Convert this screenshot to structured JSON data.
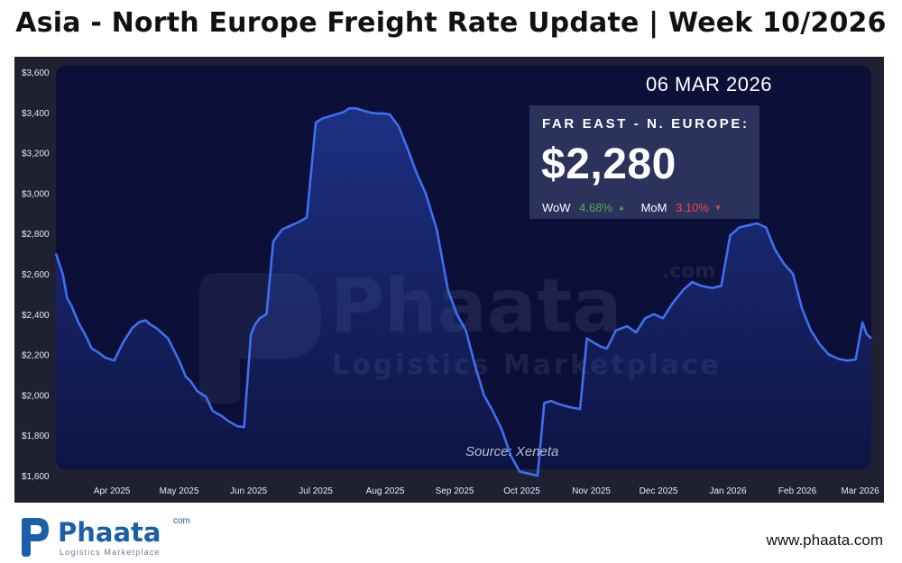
{
  "header": {
    "title": "Asia - North Europe Freight Rate Update | Week 10/2026"
  },
  "panel": {
    "date": "06 MAR 2026",
    "route": "FAR EAST - N. EUROPE:",
    "price": "$2,280",
    "wow_label": "WoW",
    "wow_value": "4.68%",
    "mom_label": "MoM",
    "mom_value": "3.10%",
    "source": "Source: Xeneta"
  },
  "watermark": {
    "name": "Phaata",
    "tagline": "Logistics Marketplace",
    "domain": ".com"
  },
  "footer": {
    "logo_name": "Phaata",
    "logo_domain": "com",
    "logo_tagline": "Logistics Marketplace",
    "website": "www.phaata.com"
  },
  "colors": {
    "line": "#3f6ff0",
    "plot_bg": "#0c0f38",
    "frame_bg": "#1f2133",
    "up": "#4caf50",
    "down": "#f04a4a"
  },
  "chart_data": {
    "type": "area",
    "title": "",
    "xlabel": "",
    "ylabel": "",
    "ylim": [
      1600,
      3600
    ],
    "yticks": [
      1600,
      1800,
      2000,
      2200,
      2400,
      2600,
      2800,
      3000,
      3200,
      3400,
      3600
    ],
    "ytick_labels": [
      "$1,600",
      "$1,800",
      "$2,000",
      "$2,200",
      "$2,400",
      "$2,600",
      "$2,800",
      "$3,000",
      "$3,200",
      "$3,400",
      "$3,600"
    ],
    "xticks": [
      {
        "date": "2025-04-01",
        "label": "Apr 2025"
      },
      {
        "date": "2025-05-01",
        "label": "May 2025"
      },
      {
        "date": "2025-06-01",
        "label": "Jun 2025"
      },
      {
        "date": "2025-07-01",
        "label": "Jul 2025"
      },
      {
        "date": "2025-08-01",
        "label": "Aug 2025"
      },
      {
        "date": "2025-09-01",
        "label": "Sep 2025"
      },
      {
        "date": "2025-10-01",
        "label": "Oct 2025"
      },
      {
        "date": "2025-11-01",
        "label": "Nov 2025"
      },
      {
        "date": "2025-12-01",
        "label": "Dec 2025"
      },
      {
        "date": "2026-01-01",
        "label": "Jan 2026"
      },
      {
        "date": "2026-02-01",
        "label": "Feb 2026"
      },
      {
        "date": "2026-03-01",
        "label": "Mar 2026"
      }
    ],
    "grid": false,
    "legend": "none",
    "series": [
      {
        "x": [
          "2025-03-07",
          "2025-03-10",
          "2025-03-12",
          "2025-03-14",
          "2025-03-17",
          "2025-03-20",
          "2025-03-23",
          "2025-03-26",
          "2025-03-29",
          "2025-04-02",
          "2025-04-06",
          "2025-04-10",
          "2025-04-13",
          "2025-04-16",
          "2025-04-18",
          "2025-04-21",
          "2025-04-26",
          "2025-05-01",
          "2025-05-04",
          "2025-05-06",
          "2025-05-09",
          "2025-05-13",
          "2025-05-16",
          "2025-05-20",
          "2025-05-23",
          "2025-05-27",
          "2025-05-30",
          "2025-06-02",
          "2025-06-04",
          "2025-06-06",
          "2025-06-09",
          "2025-06-12",
          "2025-06-16",
          "2025-06-20",
          "2025-06-24",
          "2025-06-27",
          "2025-07-01",
          "2025-07-04",
          "2025-07-07",
          "2025-07-10",
          "2025-07-13",
          "2025-07-16",
          "2025-07-19",
          "2025-07-22",
          "2025-07-25",
          "2025-07-28",
          "2025-07-31",
          "2025-08-03",
          "2025-08-07",
          "2025-08-11",
          "2025-08-15",
          "2025-08-19",
          "2025-08-24",
          "2025-08-29",
          "2025-09-02",
          "2025-09-06",
          "2025-09-10",
          "2025-09-14",
          "2025-09-18",
          "2025-09-22",
          "2025-09-26",
          "2025-09-30",
          "2025-10-04",
          "2025-10-08",
          "2025-10-11",
          "2025-10-14",
          "2025-10-16",
          "2025-10-22",
          "2025-10-27",
          "2025-10-30",
          "2025-11-02",
          "2025-11-05",
          "2025-11-08",
          "2025-11-12",
          "2025-11-17",
          "2025-11-21",
          "2025-11-25",
          "2025-11-29",
          "2025-12-03",
          "2025-12-07",
          "2025-12-12",
          "2025-12-16",
          "2025-12-20",
          "2025-12-25",
          "2025-12-29",
          "2026-01-02",
          "2026-01-06",
          "2026-01-10",
          "2026-01-14",
          "2026-01-18",
          "2026-01-22",
          "2026-01-26",
          "2026-01-30",
          "2026-02-03",
          "2026-02-07",
          "2026-02-11",
          "2026-02-15",
          "2026-02-19",
          "2026-02-23",
          "2026-02-27",
          "2026-03-02",
          "2026-03-04",
          "2026-03-06"
        ],
        "y": [
          2700,
          2600,
          2480,
          2440,
          2360,
          2300,
          2230,
          2210,
          2185,
          2170,
          2260,
          2330,
          2360,
          2370,
          2350,
          2330,
          2280,
          2170,
          2090,
          2070,
          2020,
          1990,
          1920,
          1895,
          1870,
          1845,
          1840,
          2300,
          2350,
          2380,
          2400,
          2760,
          2820,
          2840,
          2860,
          2880,
          3350,
          3370,
          3380,
          3390,
          3400,
          3420,
          3420,
          3410,
          3400,
          3395,
          3395,
          3390,
          3330,
          3220,
          3100,
          3000,
          2820,
          2520,
          2400,
          2320,
          2150,
          2000,
          1920,
          1830,
          1700,
          1620,
          1610,
          1600,
          1960,
          1970,
          1960,
          1940,
          1930,
          2280,
          2260,
          2240,
          2230,
          2320,
          2340,
          2310,
          2380,
          2400,
          2380,
          2450,
          2520,
          2560,
          2540,
          2530,
          2540,
          2790,
          2830,
          2840,
          2850,
          2830,
          2720,
          2650,
          2600,
          2430,
          2320,
          2250,
          2200,
          2180,
          2170,
          2175,
          2360,
          2300,
          2280
        ]
      }
    ]
  }
}
